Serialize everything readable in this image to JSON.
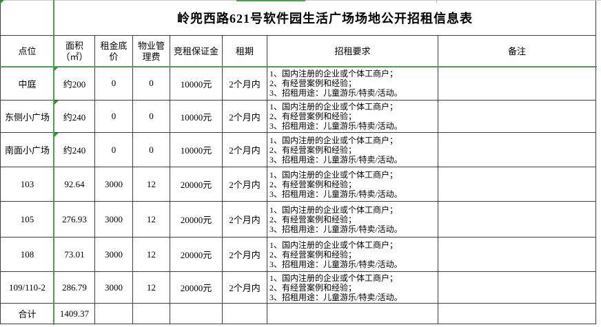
{
  "title": "岭兜西路621号软件园生活广场场地公开招租信息表",
  "colors": {
    "freeze_line_green": "#47a347",
    "grid_border": "#3d3d3d",
    "chrome_line": "#cccccc"
  },
  "table": {
    "columns": [
      {
        "key": "spot",
        "label": "点位"
      },
      {
        "key": "area",
        "label": "面积\n（㎡）"
      },
      {
        "key": "base_rent",
        "label": "租金底\n价"
      },
      {
        "key": "property_fee",
        "label": "物业管\n理费"
      },
      {
        "key": "deposit",
        "label": "竞租保证金"
      },
      {
        "key": "term",
        "label": "租期"
      },
      {
        "key": "requirements",
        "label": "招租要求"
      },
      {
        "key": "remarks",
        "label": "备注"
      }
    ],
    "requirements_lines": [
      "1、国内注册的企业或个体工商户；",
      "2、有经营案例和经验；",
      "3、招租用途：儿童游乐/特卖/活动。"
    ],
    "rows": [
      {
        "spot": "中庭",
        "area": "约200",
        "base_rent": "0",
        "property_fee": "0",
        "deposit": "10000元",
        "term": "2个月内",
        "remarks": "",
        "area_error_indicator": true
      },
      {
        "spot": "东侧小广场",
        "area": "约240",
        "base_rent": "0",
        "property_fee": "0",
        "deposit": "10000元",
        "term": "2个月内",
        "remarks": "",
        "area_error_indicator": true
      },
      {
        "spot": "南面小广场",
        "area": "约240",
        "base_rent": "0",
        "property_fee": "0",
        "deposit": "10000元",
        "term": "2个月内",
        "remarks": "",
        "area_error_indicator": true
      },
      {
        "spot": "103",
        "area": "92.64",
        "base_rent": "3000",
        "property_fee": "12",
        "deposit": "20000元",
        "term": "2个月内",
        "remarks": "",
        "area_error_indicator": false
      },
      {
        "spot": "105",
        "area": "276.93",
        "base_rent": "3000",
        "property_fee": "12",
        "deposit": "20000元",
        "term": "2个月内",
        "remarks": "",
        "area_error_indicator": false
      },
      {
        "spot": "108",
        "area": "73.01",
        "base_rent": "3000",
        "property_fee": "12",
        "deposit": "20000元",
        "term": "2个月内",
        "remarks": "",
        "area_error_indicator": false
      },
      {
        "spot": "109/110-2",
        "area": "286.79",
        "base_rent": "3000",
        "property_fee": "12",
        "deposit": "20000元",
        "term": "2个月内",
        "remarks": "",
        "area_error_indicator": false
      }
    ],
    "total": {
      "label": "合计",
      "area_total": "1409.37"
    }
  }
}
